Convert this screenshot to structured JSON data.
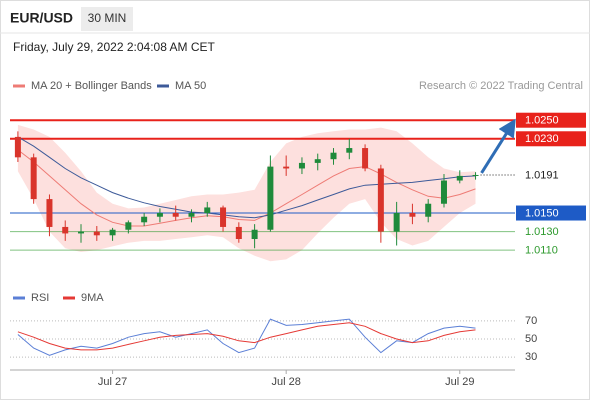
{
  "header": {
    "symbol": "EUR/USD",
    "interval": "30 MIN",
    "timestamp": "Friday, July 29, 2022 2:04:08 AM CET",
    "credit": "Research © 2022 Trading Central"
  },
  "chart_data": [
    {
      "type": "candlestick",
      "categories": [
        null,
        null,
        null,
        null,
        null,
        null,
        "Jul 27",
        null,
        null,
        null,
        null,
        null,
        null,
        null,
        null,
        null,
        null,
        "Jul 28",
        null,
        null,
        null,
        null,
        null,
        null,
        null,
        null,
        null,
        null,
        "Jul 29",
        null,
        null,
        null
      ],
      "open": [
        1.0232,
        1.021,
        1.0165,
        1.0135,
        1.0128,
        1.013,
        1.0126,
        1.0132,
        1.014,
        1.0146,
        1.015,
        1.0146,
        1.015,
        1.0156,
        1.0135,
        1.0122,
        1.0132,
        1.02,
        1.0198,
        1.0204,
        1.0208,
        1.0215,
        1.022,
        1.0198,
        1.013,
        1.015,
        1.0146,
        1.016,
        1.0185,
        1.019,
        null,
        null
      ],
      "high": [
        1.0238,
        1.0214,
        1.017,
        1.0142,
        1.0138,
        1.0136,
        1.0134,
        1.0142,
        1.015,
        1.0155,
        1.0158,
        1.0154,
        1.0162,
        1.0158,
        1.014,
        1.0138,
        1.0212,
        1.0212,
        1.021,
        1.0214,
        1.022,
        1.023,
        1.0224,
        1.0202,
        1.0162,
        1.016,
        1.0165,
        1.0192,
        1.0196,
        1.0194,
        null,
        null
      ],
      "low": [
        1.0205,
        1.016,
        1.0125,
        1.012,
        1.0118,
        1.012,
        1.012,
        1.0128,
        1.0136,
        1.014,
        1.0142,
        1.014,
        1.0146,
        1.013,
        1.0118,
        1.0112,
        1.013,
        1.019,
        1.0192,
        1.0196,
        1.0202,
        1.0208,
        1.0195,
        1.0118,
        1.0115,
        1.0138,
        1.014,
        1.0156,
        1.0182,
        1.0186,
        null,
        null
      ],
      "close": [
        1.021,
        1.0165,
        1.0135,
        1.0128,
        1.013,
        1.0126,
        1.0132,
        1.014,
        1.0146,
        1.015,
        1.0146,
        1.015,
        1.0156,
        1.0135,
        1.0122,
        1.0132,
        1.02,
        1.0198,
        1.0204,
        1.0208,
        1.0215,
        1.022,
        1.0198,
        1.013,
        1.015,
        1.0146,
        1.016,
        1.0185,
        1.019,
        1.0191,
        null,
        null
      ],
      "up_color": "#1f8a3b",
      "down_color": "#d9342b",
      "series": [
        {
          "name": "MA 20 + Bollinger Bands",
          "color": "#ee7b75",
          "values": [
            1.0218,
            1.0205,
            1.019,
            1.0175,
            1.016,
            1.0148,
            1.014,
            1.0136,
            1.0136,
            1.0139,
            1.0142,
            1.0145,
            1.0147,
            1.0146,
            1.0143,
            1.0142,
            1.015,
            1.016,
            1.017,
            1.018,
            1.019,
            1.0198,
            1.02,
            1.0192,
            1.0183,
            1.0175,
            1.0168,
            1.0166,
            1.017,
            1.0176,
            null,
            null
          ]
        },
        {
          "name": "MA 50",
          "color": "#3d5a99",
          "values": [
            1.0232,
            1.0222,
            1.021,
            1.0198,
            1.0188,
            1.018,
            1.0172,
            1.0166,
            1.0161,
            1.0157,
            1.0154,
            1.0151,
            1.015,
            1.0148,
            1.0146,
            1.0145,
            1.0148,
            1.0153,
            1.0158,
            1.0164,
            1.017,
            1.0176,
            1.018,
            1.0181,
            1.0182,
            1.0183,
            1.0185,
            1.0187,
            1.0189,
            1.019,
            null,
            null
          ]
        }
      ],
      "bands": {
        "color": "#fde0de",
        "upper": [
          1.0245,
          1.024,
          1.0232,
          1.0215,
          1.0195,
          1.0172,
          1.016,
          1.0155,
          1.0156,
          1.016,
          1.0164,
          1.0168,
          1.017,
          1.017,
          1.0172,
          1.0175,
          1.0205,
          1.0225,
          1.0232,
          1.0236,
          1.0238,
          1.024,
          1.024,
          1.0242,
          1.0238,
          1.0225,
          1.021,
          1.0198,
          1.0194,
          1.0195,
          null,
          null
        ],
        "lower": [
          1.0195,
          1.0165,
          1.013,
          1.0112,
          1.0108,
          1.011,
          1.0114,
          1.0118,
          1.012,
          1.012,
          1.0122,
          1.0124,
          1.0126,
          1.0124,
          1.0112,
          1.0104,
          1.0098,
          1.01,
          1.011,
          1.0128,
          1.0145,
          1.016,
          1.0165,
          1.014,
          1.0122,
          1.0115,
          1.012,
          1.0135,
          1.015,
          1.016,
          null,
          null
        ]
      },
      "levels": [
        {
          "value": 1.025,
          "label": "1.0250",
          "color": "#e8221b",
          "fill": true,
          "dash": false
        },
        {
          "value": 1.023,
          "label": "1.0230",
          "color": "#e8221b",
          "fill": true,
          "dash": false
        },
        {
          "value": 1.0191,
          "label": "1.0191",
          "color": "#222222",
          "fill": false,
          "dash": true
        },
        {
          "value": 1.015,
          "label": "1.0150",
          "color": "#1e5bc6",
          "fill": true,
          "dash": false
        },
        {
          "value": 1.013,
          "label": "1.0130",
          "color": "#2e9a2e",
          "fill": false,
          "dash": false
        },
        {
          "value": 1.011,
          "label": "1.0110",
          "color": "#2e9a2e",
          "fill": false,
          "dash": false
        }
      ],
      "forecast_color": "#2f6db5",
      "ylim": [
        1.0094,
        1.0261
      ]
    },
    {
      "type": "line",
      "series": [
        {
          "name": "RSI",
          "color": "#5b7fd6",
          "values": [
            55,
            40,
            32,
            38,
            42,
            40,
            45,
            52,
            56,
            58,
            52,
            56,
            60,
            45,
            35,
            40,
            72,
            65,
            66,
            68,
            70,
            72,
            52,
            35,
            48,
            46,
            56,
            62,
            64,
            62,
            null,
            null
          ]
        },
        {
          "name": "9MA",
          "color": "#e53935",
          "values": [
            58,
            52,
            45,
            40,
            38,
            38,
            40,
            44,
            48,
            52,
            54,
            55,
            56,
            53,
            48,
            46,
            52,
            56,
            60,
            64,
            66,
            68,
            64,
            56,
            50,
            46,
            48,
            54,
            58,
            60,
            null,
            null
          ]
        }
      ],
      "ylim": [
        18,
        82
      ],
      "yticks": [
        70,
        50,
        30
      ],
      "grid": true
    }
  ]
}
